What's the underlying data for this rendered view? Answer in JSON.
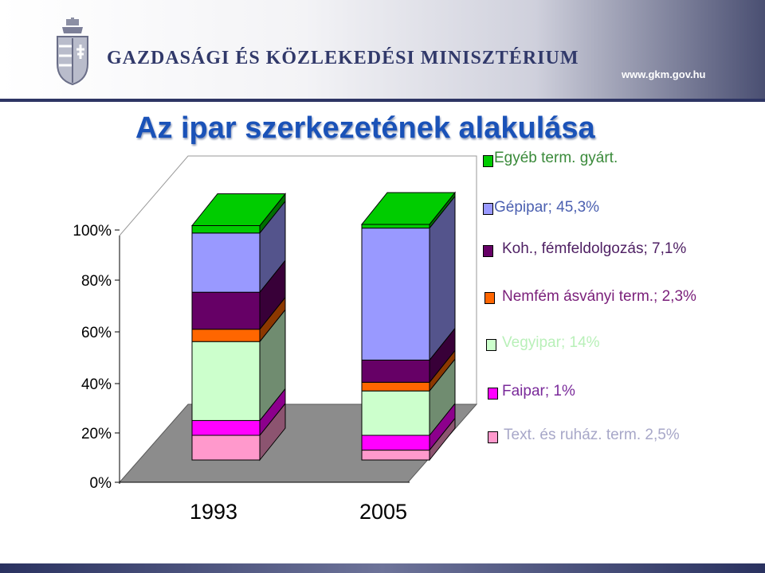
{
  "header": {
    "ministry_name": "GAZDASÁGI ÉS KÖZLEKEDÉSI MINISZTÉRIUM",
    "website": "www.gkm.gov.hu"
  },
  "chart_data": {
    "type": "bar",
    "stacked": true,
    "three_d": true,
    "title": "Az ipar szerkezetének alakulása",
    "categories": [
      "1993",
      "2005"
    ],
    "y_ticks": [
      "0%",
      "20%",
      "40%",
      "60%",
      "80%",
      "100%"
    ],
    "ylim": [
      0,
      100
    ],
    "grid": false,
    "legend_position": "right",
    "series": [
      {
        "name": "Text. és ruház. term.  2,5%",
        "color": "#ff99cc",
        "values": [
          10,
          4
        ]
      },
      {
        "name": "Faipar; 1%",
        "color": "#ff00ff",
        "values": [
          6,
          6
        ]
      },
      {
        "name": "Vegyipar; 14%",
        "color": "#ccffcc",
        "values": [
          32,
          18
        ]
      },
      {
        "name": "Nemfém ásványi term.; 2,3%",
        "color": "#ff6600",
        "values": [
          5,
          3.5
        ]
      },
      {
        "name": "Koh., fémfeldolgozás; 7,1%",
        "color": "#660066",
        "values": [
          15,
          9
        ]
      },
      {
        "name": "Gépipar; 45,3%",
        "color": "#9999ff",
        "values": [
          24,
          53.5
        ]
      },
      {
        "name": "Egyéb term. gyárt.",
        "color": "#00cc00",
        "values": [
          3,
          1.5
        ]
      }
    ]
  }
}
